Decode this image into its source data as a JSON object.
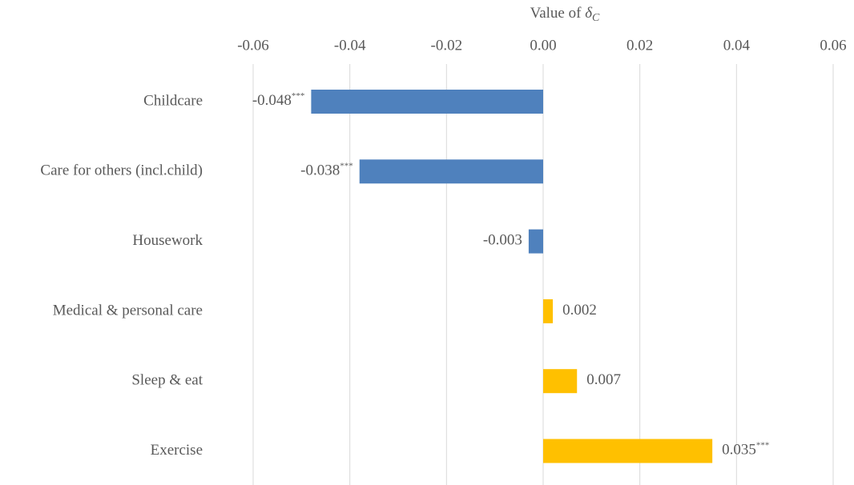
{
  "chart_data": {
    "type": "barh",
    "axis_label": {
      "text": "Value of",
      "symbol": "δ",
      "subscript": "C"
    },
    "categories": [
      "Childcare",
      "Care for others (incl.child)",
      "Housework",
      "Medical & personal care",
      "Sleep & eat",
      "Exercise"
    ],
    "values": [
      -0.048,
      -0.038,
      -0.003,
      0.002,
      0.007,
      0.035
    ],
    "significance": [
      "***",
      "***",
      null,
      null,
      null,
      "***"
    ],
    "colors": [
      "#4f81bd",
      "#4f81bd",
      "#4f81bd",
      "#ffc000",
      "#ffc000",
      "#ffc000"
    ],
    "xlim": [
      -0.06,
      0.06
    ],
    "xticks": [
      -0.06,
      -0.04,
      -0.02,
      {
        "value": 0,
        "label": "0.00"
      },
      0.02,
      0.04,
      0.06
    ],
    "grid": true
  }
}
